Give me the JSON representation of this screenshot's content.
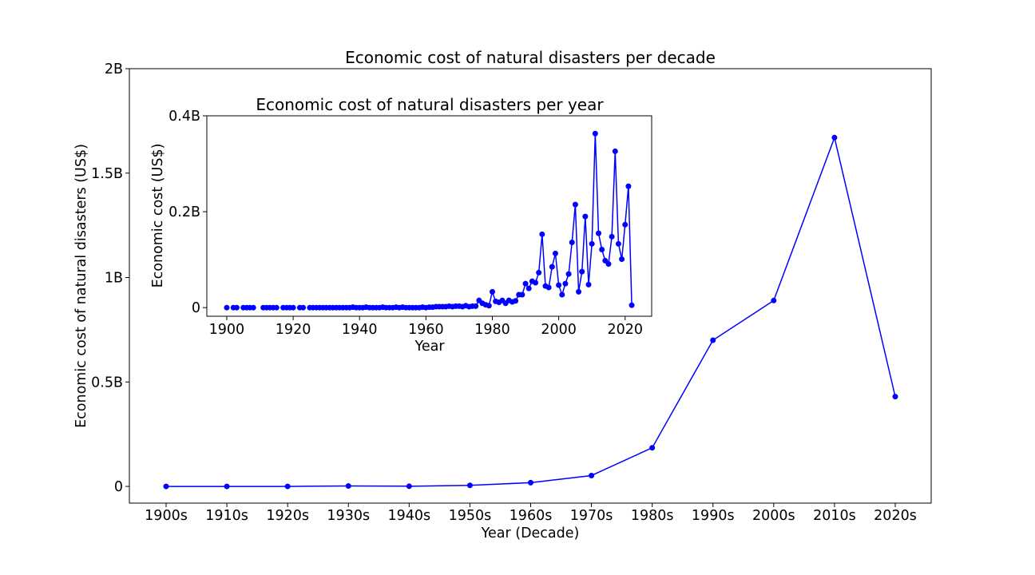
{
  "chart_data": [
    {
      "type": "line",
      "title": "Economic cost of natural disasters per decade",
      "xlabel": "Year (Decade)",
      "ylabel": "Economic cost of natural disasters (US$)",
      "categories": [
        "1900s",
        "1910s",
        "1920s",
        "1930s",
        "1940s",
        "1950s",
        "1960s",
        "1970s",
        "1980s",
        "1990s",
        "2000s",
        "2010s",
        "2020s"
      ],
      "values": [
        0.0,
        0.0,
        0.0,
        0.002,
        0.001,
        0.005,
        0.018,
        0.052,
        0.185,
        0.7,
        0.89,
        1.67,
        0.43
      ],
      "value_unit": "billion US$",
      "ylim": [
        -0.08,
        2.0
      ],
      "yticks": [
        0,
        0.5,
        1,
        1.5,
        2
      ],
      "ytick_labels": [
        "0",
        "0.5B",
        "1B",
        "1.5B",
        "2B"
      ],
      "grid": false,
      "color": "#0000ff"
    },
    {
      "type": "line",
      "title": "Economic cost of natural disasters per year",
      "xlabel": "Year",
      "ylabel": "Economic cost (US$)",
      "xlim": [
        1894,
        2028
      ],
      "ylim": [
        -0.018,
        0.4
      ],
      "xticks": [
        1900,
        1920,
        1940,
        1960,
        1980,
        2000,
        2020
      ],
      "xtick_labels": [
        "1900",
        "1920",
        "1940",
        "1960",
        "1980",
        "2000",
        "2020"
      ],
      "yticks": [
        0,
        0.2,
        0.4
      ],
      "ytick_labels": [
        "0",
        "0.2B",
        "0.4B"
      ],
      "value_unit": "billion US$",
      "grid": false,
      "color": "#0000ff",
      "x": [
        1900,
        1902,
        1903,
        1905,
        1906,
        1907,
        1908,
        1911,
        1912,
        1913,
        1914,
        1915,
        1917,
        1918,
        1919,
        1920,
        1922,
        1923,
        1925,
        1926,
        1927,
        1928,
        1929,
        1930,
        1931,
        1932,
        1933,
        1934,
        1935,
        1936,
        1937,
        1938,
        1939,
        1940,
        1941,
        1942,
        1943,
        1944,
        1945,
        1946,
        1947,
        1948,
        1949,
        1950,
        1951,
        1952,
        1953,
        1954,
        1955,
        1956,
        1957,
        1958,
        1959,
        1960,
        1961,
        1962,
        1963,
        1964,
        1965,
        1966,
        1967,
        1968,
        1969,
        1970,
        1971,
        1972,
        1973,
        1974,
        1975,
        1976,
        1977,
        1978,
        1979,
        1980,
        1981,
        1982,
        1983,
        1984,
        1985,
        1986,
        1987,
        1988,
        1989,
        1990,
        1991,
        1992,
        1993,
        1994,
        1995,
        1996,
        1997,
        1998,
        1999,
        2000,
        2001,
        2002,
        2003,
        2004,
        2005,
        2006,
        2007,
        2008,
        2009,
        2010,
        2011,
        2012,
        2013,
        2014,
        2015,
        2016,
        2017,
        2018,
        2019,
        2020,
        2021,
        2022
      ],
      "y": [
        0,
        0,
        0,
        0,
        0,
        0,
        0,
        0,
        0,
        0,
        0,
        0,
        0,
        0,
        0,
        0,
        0,
        0,
        0,
        0,
        0,
        0,
        0,
        0,
        0,
        0,
        0,
        0,
        0,
        0,
        0,
        0.001,
        0,
        0,
        0,
        0.001,
        0,
        0,
        0,
        0,
        0.001,
        0,
        0,
        0,
        0.001,
        0,
        0.001,
        0,
        0,
        0,
        0,
        0,
        0.001,
        0,
        0.001,
        0.001,
        0.002,
        0.002,
        0.002,
        0.002,
        0.003,
        0.002,
        0.003,
        0.003,
        0.002,
        0.004,
        0.002,
        0.003,
        0.003,
        0.015,
        0.009,
        0.006,
        0.004,
        0.033,
        0.013,
        0.011,
        0.015,
        0.009,
        0.015,
        0.012,
        0.014,
        0.027,
        0.027,
        0.05,
        0.04,
        0.055,
        0.052,
        0.073,
        0.153,
        0.045,
        0.042,
        0.085,
        0.113,
        0.047,
        0.027,
        0.05,
        0.07,
        0.136,
        0.215,
        0.033,
        0.075,
        0.19,
        0.048,
        0.133,
        0.363,
        0.155,
        0.121,
        0.098,
        0.091,
        0.148,
        0.326,
        0.133,
        0.101,
        0.173,
        0.253,
        0.005
      ]
    }
  ]
}
